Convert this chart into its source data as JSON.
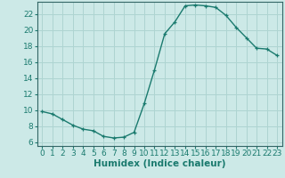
{
  "x": [
    0,
    1,
    2,
    3,
    4,
    5,
    6,
    7,
    8,
    9,
    10,
    11,
    12,
    13,
    14,
    15,
    16,
    17,
    18,
    19,
    20,
    21,
    22,
    23
  ],
  "y": [
    9.8,
    9.5,
    8.8,
    8.1,
    7.6,
    7.4,
    6.7,
    6.5,
    6.6,
    7.2,
    10.8,
    15.0,
    19.5,
    21.0,
    23.0,
    23.1,
    23.0,
    22.8,
    21.8,
    20.3,
    19.0,
    17.7,
    17.6,
    16.8
  ],
  "xlabel": "Humidex (Indice chaleur)",
  "xlim": [
    -0.5,
    23.5
  ],
  "ylim": [
    5.5,
    23.5
  ],
  "yticks": [
    6,
    8,
    10,
    12,
    14,
    16,
    18,
    20,
    22
  ],
  "xticks": [
    0,
    1,
    2,
    3,
    4,
    5,
    6,
    7,
    8,
    9,
    10,
    11,
    12,
    13,
    14,
    15,
    16,
    17,
    18,
    19,
    20,
    21,
    22,
    23
  ],
  "line_color": "#1a7a6e",
  "marker": "+",
  "bg_color": "#cce9e7",
  "grid_color": "#aed4d1",
  "axis_color": "#336666",
  "tick_label_color": "#1a7a6e",
  "xlabel_color": "#1a7a6e",
  "font_size_ticks": 6.5,
  "font_size_xlabel": 7.5
}
